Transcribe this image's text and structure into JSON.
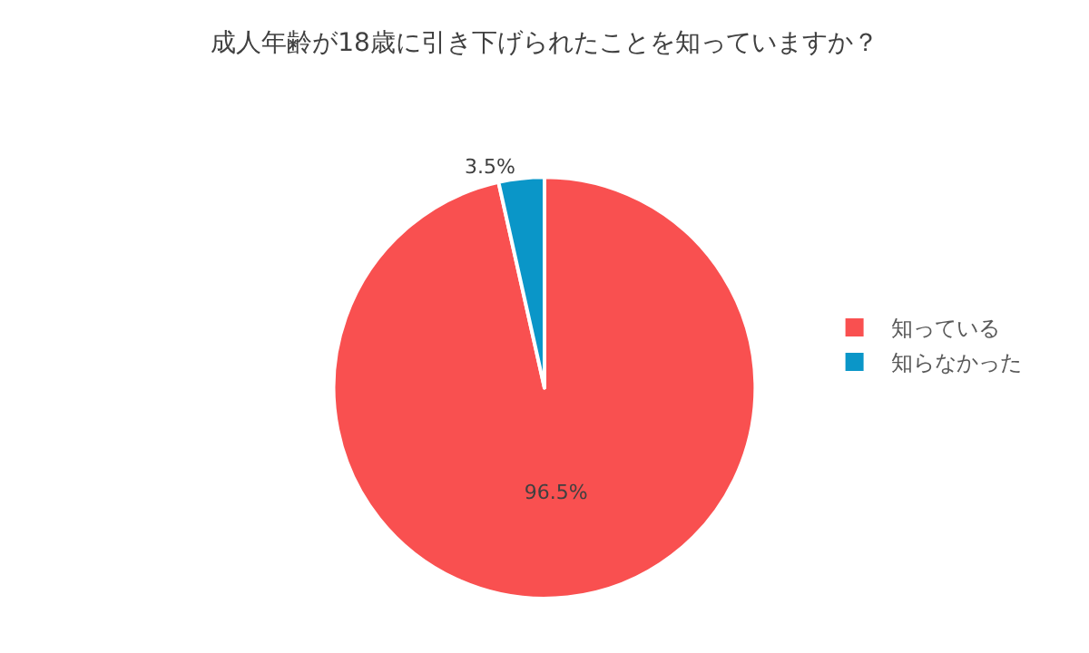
{
  "chart_data": {
    "type": "pie",
    "title": "成人年齢が18歳に引き下げられたことを知っていますか？",
    "categories": [
      "知っている",
      "知らなかった"
    ],
    "values": [
      96.5,
      3.5
    ],
    "colors": [
      "#f95050",
      "#0a96c8"
    ],
    "value_labels": [
      "96.5%",
      "3.5%"
    ],
    "legend": "right"
  }
}
